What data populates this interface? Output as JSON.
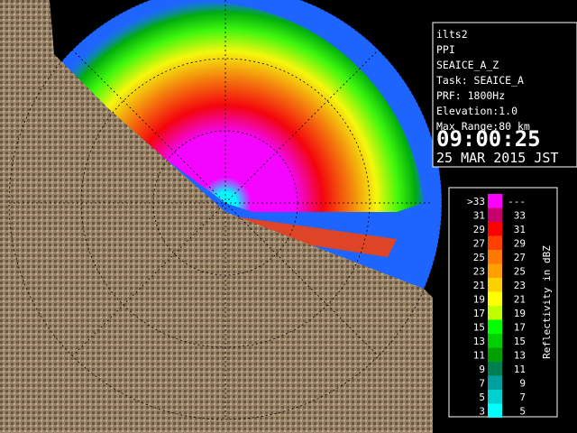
{
  "info": {
    "lines": [
      "ilts2",
      "PPI",
      "SEAICE_A_Z",
      "Task: SEAICE_A",
      "PRF: 1800Hz",
      "Elevation:1.0",
      "Max Range:80 km"
    ],
    "time": "09:00:25",
    "date": "25 MAR 2015 JST"
  },
  "legend": {
    "title": "Reflectivity in dBZ",
    "rows": [
      {
        "left": ">33",
        "right": "---",
        "color": "#ff00ff"
      },
      {
        "left": "31",
        "right": "33",
        "color": "#c8006e"
      },
      {
        "left": "29",
        "right": "31",
        "color": "#ff0000"
      },
      {
        "left": "27",
        "right": "29",
        "color": "#ff4000"
      },
      {
        "left": "25",
        "right": "27",
        "color": "#ff7800"
      },
      {
        "left": "23",
        "right": "25",
        "color": "#ffa000"
      },
      {
        "left": "21",
        "right": "23",
        "color": "#ffd000"
      },
      {
        "left": "19",
        "right": "21",
        "color": "#ffff00"
      },
      {
        "left": "17",
        "right": "19",
        "color": "#c0ff00"
      },
      {
        "left": "15",
        "right": "17",
        "color": "#00ff00"
      },
      {
        "left": "13",
        "right": "15",
        "color": "#00d000"
      },
      {
        "left": "11",
        "right": "13",
        "color": "#00a000"
      },
      {
        "left": "9",
        "right": "11",
        "color": "#008050"
      },
      {
        "left": "7",
        "right": "9",
        "color": "#00a0a0"
      },
      {
        "left": "5",
        "right": "7",
        "color": "#00d0d0"
      },
      {
        "left": "3",
        "right": "5",
        "color": "#00ffff"
      }
    ]
  }
}
